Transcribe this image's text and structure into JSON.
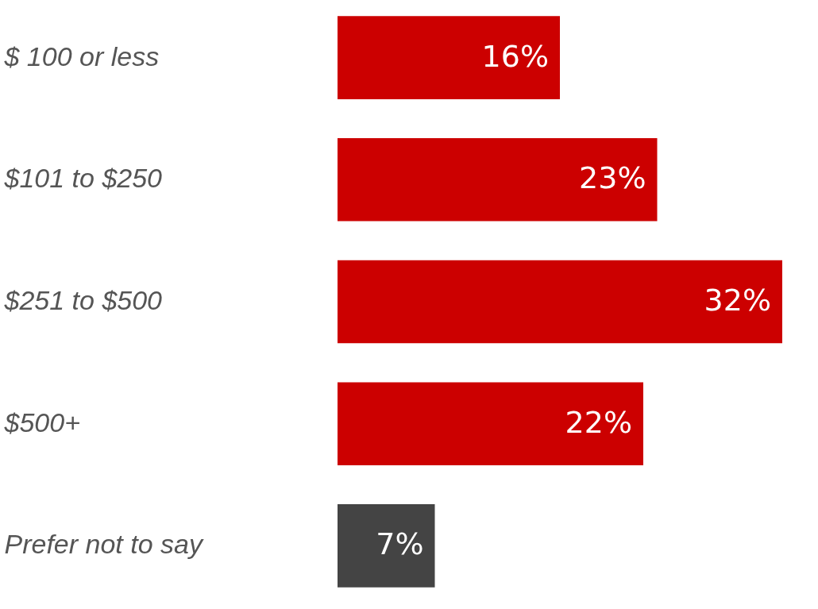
{
  "chart_data": {
    "type": "bar",
    "orientation": "horizontal",
    "categories": [
      "$ 100 or less",
      "$101  to $250",
      "$251 to $500",
      "$500+",
      "Prefer not to say"
    ],
    "values": [
      16,
      23,
      32,
      22,
      7
    ],
    "colors": [
      "#cc0000",
      "#cc0000",
      "#cc0000",
      "#cc0000",
      "#444444"
    ],
    "value_labels": [
      "16%",
      "23%",
      "32%",
      "22%",
      "7%"
    ],
    "legend": false
  }
}
